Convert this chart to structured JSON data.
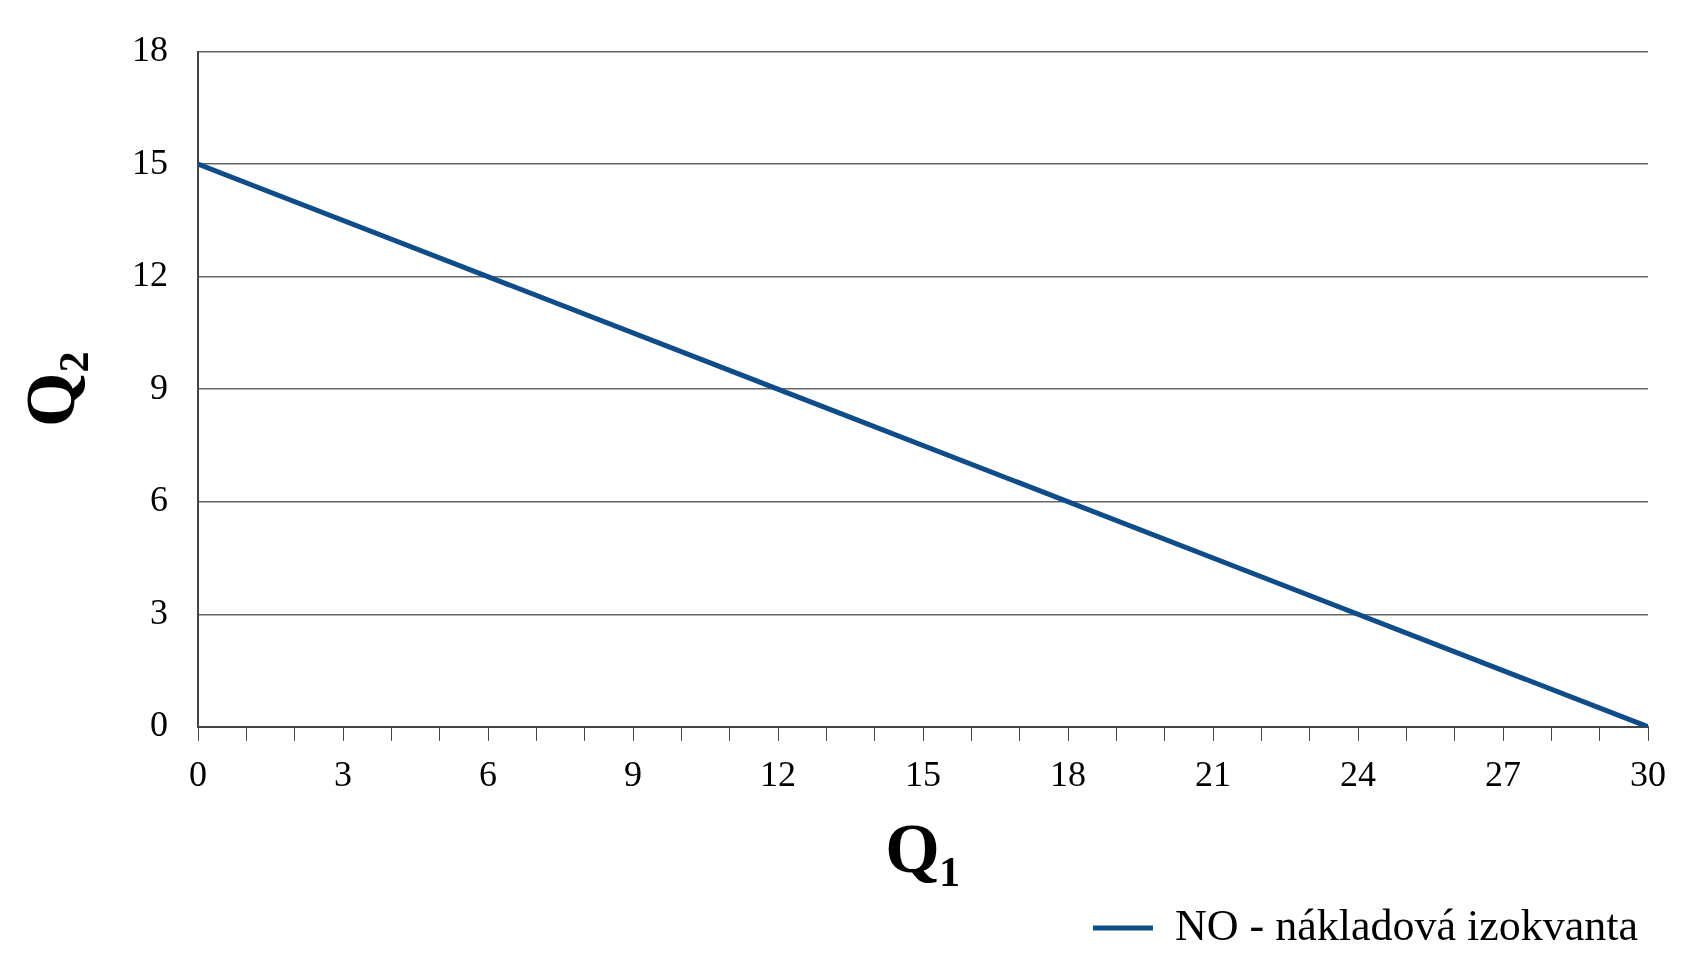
{
  "chart_data": {
    "type": "line",
    "xlabel": "Q₁",
    "ylabel": "Q₂",
    "x": [
      0,
      30
    ],
    "series": [
      {
        "name": "NO - nákladová izokvanta",
        "color": "#0f4c8a",
        "values": [
          15,
          0
        ]
      }
    ],
    "xlim": [
      0,
      30
    ],
    "xticks": [
      0,
      {
        "value": 1,
        "label": null
      },
      {
        "value": 2,
        "label": null
      },
      3,
      {
        "value": 4,
        "label": null
      },
      {
        "value": 5,
        "label": null
      },
      6,
      {
        "value": 7,
        "label": null
      },
      {
        "value": 8,
        "label": null
      },
      9,
      {
        "value": 10,
        "label": null
      },
      {
        "value": 11,
        "label": null
      },
      12,
      {
        "value": 13,
        "label": null
      },
      {
        "value": 14,
        "label": null
      },
      15,
      {
        "value": 16,
        "label": null
      },
      {
        "value": 17,
        "label": null
      },
      18,
      {
        "value": 19,
        "label": null
      },
      {
        "value": 20,
        "label": null
      },
      21,
      {
        "value": 22,
        "label": null
      },
      {
        "value": 23,
        "label": null
      },
      24,
      {
        "value": 25,
        "label": null
      },
      {
        "value": 26,
        "label": null
      },
      27,
      {
        "value": 28,
        "label": null
      },
      {
        "value": 29,
        "label": null
      },
      30
    ],
    "ylim": [
      0,
      18
    ],
    "yticks": [
      0,
      3,
      6,
      9,
      12,
      15,
      18
    ],
    "grid": "y",
    "legend": "bottom right",
    "marker": "none",
    "line_style": "solid"
  }
}
